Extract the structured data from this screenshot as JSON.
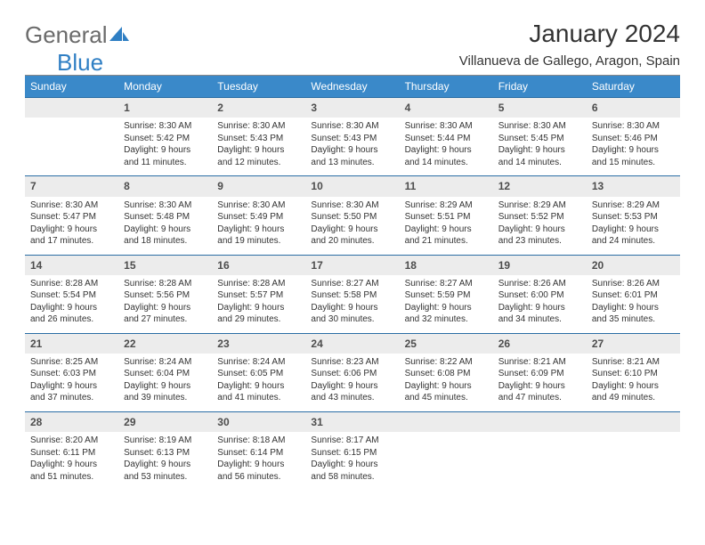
{
  "brand": {
    "part1": "General",
    "part2": "Blue"
  },
  "title": "January 2024",
  "location": "Villanueva de Gallego, Aragon, Spain",
  "colors": {
    "header_bg": "#3a89c9",
    "header_text": "#ffffff",
    "daynum_bg": "#ececec",
    "daynum_border_top": "#2b6ea5",
    "text": "#333333",
    "brand_gray": "#6b6b6b",
    "brand_blue": "#2f7fc4"
  },
  "daysOfWeek": [
    "Sunday",
    "Monday",
    "Tuesday",
    "Wednesday",
    "Thursday",
    "Friday",
    "Saturday"
  ],
  "weeks": [
    [
      {
        "n": "",
        "sr": "",
        "ss": "",
        "dl1": "",
        "dl2": ""
      },
      {
        "n": "1",
        "sr": "Sunrise: 8:30 AM",
        "ss": "Sunset: 5:42 PM",
        "dl1": "Daylight: 9 hours",
        "dl2": "and 11 minutes."
      },
      {
        "n": "2",
        "sr": "Sunrise: 8:30 AM",
        "ss": "Sunset: 5:43 PM",
        "dl1": "Daylight: 9 hours",
        "dl2": "and 12 minutes."
      },
      {
        "n": "3",
        "sr": "Sunrise: 8:30 AM",
        "ss": "Sunset: 5:43 PM",
        "dl1": "Daylight: 9 hours",
        "dl2": "and 13 minutes."
      },
      {
        "n": "4",
        "sr": "Sunrise: 8:30 AM",
        "ss": "Sunset: 5:44 PM",
        "dl1": "Daylight: 9 hours",
        "dl2": "and 14 minutes."
      },
      {
        "n": "5",
        "sr": "Sunrise: 8:30 AM",
        "ss": "Sunset: 5:45 PM",
        "dl1": "Daylight: 9 hours",
        "dl2": "and 14 minutes."
      },
      {
        "n": "6",
        "sr": "Sunrise: 8:30 AM",
        "ss": "Sunset: 5:46 PM",
        "dl1": "Daylight: 9 hours",
        "dl2": "and 15 minutes."
      }
    ],
    [
      {
        "n": "7",
        "sr": "Sunrise: 8:30 AM",
        "ss": "Sunset: 5:47 PM",
        "dl1": "Daylight: 9 hours",
        "dl2": "and 17 minutes."
      },
      {
        "n": "8",
        "sr": "Sunrise: 8:30 AM",
        "ss": "Sunset: 5:48 PM",
        "dl1": "Daylight: 9 hours",
        "dl2": "and 18 minutes."
      },
      {
        "n": "9",
        "sr": "Sunrise: 8:30 AM",
        "ss": "Sunset: 5:49 PM",
        "dl1": "Daylight: 9 hours",
        "dl2": "and 19 minutes."
      },
      {
        "n": "10",
        "sr": "Sunrise: 8:30 AM",
        "ss": "Sunset: 5:50 PM",
        "dl1": "Daylight: 9 hours",
        "dl2": "and 20 minutes."
      },
      {
        "n": "11",
        "sr": "Sunrise: 8:29 AM",
        "ss": "Sunset: 5:51 PM",
        "dl1": "Daylight: 9 hours",
        "dl2": "and 21 minutes."
      },
      {
        "n": "12",
        "sr": "Sunrise: 8:29 AM",
        "ss": "Sunset: 5:52 PM",
        "dl1": "Daylight: 9 hours",
        "dl2": "and 23 minutes."
      },
      {
        "n": "13",
        "sr": "Sunrise: 8:29 AM",
        "ss": "Sunset: 5:53 PM",
        "dl1": "Daylight: 9 hours",
        "dl2": "and 24 minutes."
      }
    ],
    [
      {
        "n": "14",
        "sr": "Sunrise: 8:28 AM",
        "ss": "Sunset: 5:54 PM",
        "dl1": "Daylight: 9 hours",
        "dl2": "and 26 minutes."
      },
      {
        "n": "15",
        "sr": "Sunrise: 8:28 AM",
        "ss": "Sunset: 5:56 PM",
        "dl1": "Daylight: 9 hours",
        "dl2": "and 27 minutes."
      },
      {
        "n": "16",
        "sr": "Sunrise: 8:28 AM",
        "ss": "Sunset: 5:57 PM",
        "dl1": "Daylight: 9 hours",
        "dl2": "and 29 minutes."
      },
      {
        "n": "17",
        "sr": "Sunrise: 8:27 AM",
        "ss": "Sunset: 5:58 PM",
        "dl1": "Daylight: 9 hours",
        "dl2": "and 30 minutes."
      },
      {
        "n": "18",
        "sr": "Sunrise: 8:27 AM",
        "ss": "Sunset: 5:59 PM",
        "dl1": "Daylight: 9 hours",
        "dl2": "and 32 minutes."
      },
      {
        "n": "19",
        "sr": "Sunrise: 8:26 AM",
        "ss": "Sunset: 6:00 PM",
        "dl1": "Daylight: 9 hours",
        "dl2": "and 34 minutes."
      },
      {
        "n": "20",
        "sr": "Sunrise: 8:26 AM",
        "ss": "Sunset: 6:01 PM",
        "dl1": "Daylight: 9 hours",
        "dl2": "and 35 minutes."
      }
    ],
    [
      {
        "n": "21",
        "sr": "Sunrise: 8:25 AM",
        "ss": "Sunset: 6:03 PM",
        "dl1": "Daylight: 9 hours",
        "dl2": "and 37 minutes."
      },
      {
        "n": "22",
        "sr": "Sunrise: 8:24 AM",
        "ss": "Sunset: 6:04 PM",
        "dl1": "Daylight: 9 hours",
        "dl2": "and 39 minutes."
      },
      {
        "n": "23",
        "sr": "Sunrise: 8:24 AM",
        "ss": "Sunset: 6:05 PM",
        "dl1": "Daylight: 9 hours",
        "dl2": "and 41 minutes."
      },
      {
        "n": "24",
        "sr": "Sunrise: 8:23 AM",
        "ss": "Sunset: 6:06 PM",
        "dl1": "Daylight: 9 hours",
        "dl2": "and 43 minutes."
      },
      {
        "n": "25",
        "sr": "Sunrise: 8:22 AM",
        "ss": "Sunset: 6:08 PM",
        "dl1": "Daylight: 9 hours",
        "dl2": "and 45 minutes."
      },
      {
        "n": "26",
        "sr": "Sunrise: 8:21 AM",
        "ss": "Sunset: 6:09 PM",
        "dl1": "Daylight: 9 hours",
        "dl2": "and 47 minutes."
      },
      {
        "n": "27",
        "sr": "Sunrise: 8:21 AM",
        "ss": "Sunset: 6:10 PM",
        "dl1": "Daylight: 9 hours",
        "dl2": "and 49 minutes."
      }
    ],
    [
      {
        "n": "28",
        "sr": "Sunrise: 8:20 AM",
        "ss": "Sunset: 6:11 PM",
        "dl1": "Daylight: 9 hours",
        "dl2": "and 51 minutes."
      },
      {
        "n": "29",
        "sr": "Sunrise: 8:19 AM",
        "ss": "Sunset: 6:13 PM",
        "dl1": "Daylight: 9 hours",
        "dl2": "and 53 minutes."
      },
      {
        "n": "30",
        "sr": "Sunrise: 8:18 AM",
        "ss": "Sunset: 6:14 PM",
        "dl1": "Daylight: 9 hours",
        "dl2": "and 56 minutes."
      },
      {
        "n": "31",
        "sr": "Sunrise: 8:17 AM",
        "ss": "Sunset: 6:15 PM",
        "dl1": "Daylight: 9 hours",
        "dl2": "and 58 minutes."
      },
      {
        "n": "",
        "sr": "",
        "ss": "",
        "dl1": "",
        "dl2": ""
      },
      {
        "n": "",
        "sr": "",
        "ss": "",
        "dl1": "",
        "dl2": ""
      },
      {
        "n": "",
        "sr": "",
        "ss": "",
        "dl1": "",
        "dl2": ""
      }
    ]
  ]
}
